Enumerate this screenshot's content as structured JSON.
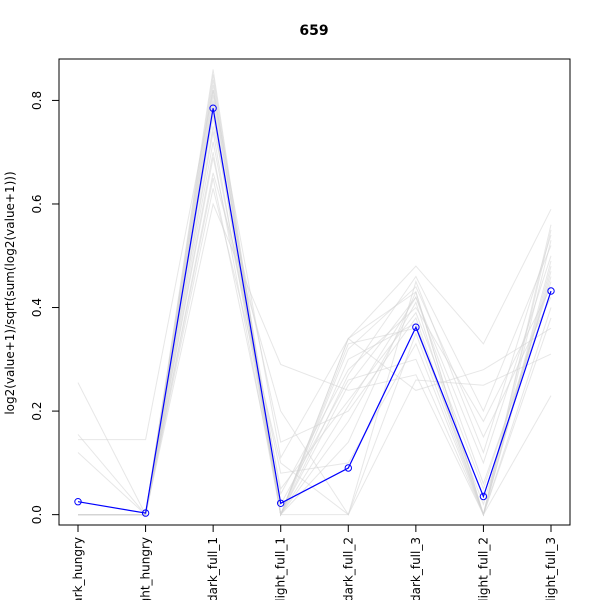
{
  "chart_data": {
    "type": "line",
    "title": "659",
    "xlabel": "",
    "ylabel": "log2(value+1)/sqrt(sum(log2(value+1)))",
    "categories": [
      "dark_hungry",
      "light_hungry",
      "dark_full_1",
      "light_full_1",
      "dark_full_2",
      "dark_full_3",
      "light_full_2",
      "light_full_3"
    ],
    "category_labels": [
      "ark_hungry",
      "ght_hungry",
      "dark_full_1",
      "light_full_1",
      "dark_full_2",
      "dark_full_3",
      "light_full_2",
      "light_full_3"
    ],
    "ylim": [
      -0.02,
      0.88
    ],
    "yticks": [
      0.0,
      0.2,
      0.4,
      0.6,
      0.8
    ],
    "ytick_labels": [
      "0.0",
      "0.2",
      "0.4",
      "0.6",
      "0.8"
    ],
    "grid": false,
    "series": [
      {
        "values": [
          0.025,
          0.003,
          0.785,
          0.022,
          0.09,
          0.362,
          0.035,
          0.432
        ],
        "color": "#0000ff",
        "markers": "open-circle",
        "highlight": true
      }
    ],
    "background_series": [
      {
        "values": [
          0.155,
          0.0,
          0.84,
          0.0,
          0.34,
          0.48,
          0.33,
          0.59
        ],
        "color": "#d3d3d3"
      },
      {
        "values": [
          0.145,
          0.145,
          0.82,
          0.11,
          0.34,
          0.43,
          0.0,
          0.55
        ],
        "color": "#d3d3d3"
      },
      {
        "values": [
          0.255,
          0.0,
          0.6,
          0.29,
          0.24,
          0.27,
          0.0,
          0.23
        ],
        "color": "#d3d3d3"
      },
      {
        "values": [
          0.0,
          0.0,
          0.86,
          0.0,
          0.34,
          0.24,
          0.28,
          0.36
        ],
        "color": "#d3d3d3"
      },
      {
        "values": [
          0.12,
          0.0,
          0.78,
          0.0,
          0.27,
          0.46,
          0.2,
          0.52
        ],
        "color": "#d3d3d3"
      },
      {
        "values": [
          0.0,
          0.0,
          0.75,
          0.14,
          0.2,
          0.38,
          0.0,
          0.49
        ],
        "color": "#d3d3d3"
      },
      {
        "values": [
          0.0,
          0.0,
          0.7,
          0.0,
          0.32,
          0.44,
          0.15,
          0.42
        ],
        "color": "#d3d3d3"
      },
      {
        "values": [
          0.0,
          0.0,
          0.83,
          0.0,
          0.18,
          0.41,
          0.0,
          0.53
        ],
        "color": "#d3d3d3"
      },
      {
        "values": [
          0.0,
          0.0,
          0.66,
          0.2,
          0.0,
          0.35,
          0.0,
          0.47
        ],
        "color": "#d3d3d3"
      },
      {
        "values": [
          0.0,
          0.0,
          0.8,
          0.0,
          0.25,
          0.42,
          0.1,
          0.5
        ],
        "color": "#d3d3d3"
      },
      {
        "values": [
          0.0,
          0.0,
          0.72,
          0.05,
          0.22,
          0.39,
          0.05,
          0.45
        ],
        "color": "#d3d3d3"
      },
      {
        "values": [
          0.0,
          0.0,
          0.85,
          0.0,
          0.3,
          0.37,
          0.0,
          0.38
        ],
        "color": "#d3d3d3"
      },
      {
        "values": [
          0.0,
          0.0,
          0.63,
          0.1,
          0.0,
          0.26,
          0.25,
          0.31
        ],
        "color": "#d3d3d3"
      },
      {
        "values": [
          0.0,
          0.0,
          0.77,
          0.0,
          0.14,
          0.43,
          0.0,
          0.56
        ],
        "color": "#d3d3d3"
      },
      {
        "values": [
          0.0,
          0.0,
          0.81,
          0.04,
          0.28,
          0.4,
          0.18,
          0.44
        ],
        "color": "#d3d3d3"
      },
      {
        "values": [
          0.0,
          0.0,
          0.74,
          0.0,
          0.33,
          0.36,
          0.02,
          0.46
        ],
        "color": "#d3d3d3"
      },
      {
        "values": [
          0.0,
          0.0,
          0.69,
          0.08,
          0.1,
          0.33,
          0.0,
          0.4
        ],
        "color": "#d3d3d3"
      },
      {
        "values": [
          0.0,
          0.0,
          0.82,
          0.0,
          0.0,
          0.45,
          0.12,
          0.54
        ],
        "color": "#d3d3d3"
      },
      {
        "values": [
          0.0,
          0.0,
          0.65,
          0.02,
          0.26,
          0.3,
          0.0,
          0.48
        ],
        "color": "#d3d3d3"
      },
      {
        "values": [
          0.0,
          0.0,
          0.79,
          0.0,
          0.21,
          0.42,
          0.06,
          0.43
        ],
        "color": "#d3d3d3"
      }
    ]
  }
}
